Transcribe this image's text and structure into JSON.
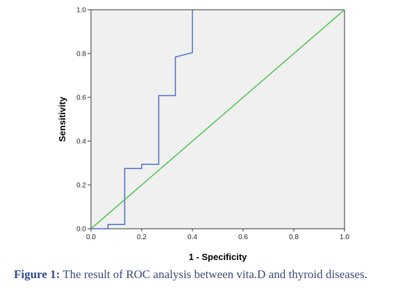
{
  "caption": {
    "label": "Figure 1:",
    "text": " The result of ROC analysis between vita.D and thyroid diseases."
  },
  "colors": {
    "plot_background": "#f0f0f0",
    "roc_curve": "#4a6cc0",
    "reference_line": "#4ec24e",
    "caption_text": "#3a4a7a"
  },
  "chart_data": {
    "type": "line",
    "title": "",
    "xlabel": "1 - Specificity",
    "ylabel": "Sensitivity",
    "xlim": [
      0,
      1
    ],
    "ylim": [
      0,
      1
    ],
    "x_ticks": [
      "0.0",
      "0.2",
      "0.4",
      "0.6",
      "0.8",
      "1.0"
    ],
    "y_ticks": [
      "0.0",
      "0.2",
      "0.4",
      "0.6",
      "0.8",
      "1.0"
    ],
    "grid": false,
    "legend": "none",
    "series": [
      {
        "color": "#4a6cc0",
        "x": [
          0.0,
          0.067,
          0.067,
          0.133,
          0.133,
          0.2,
          0.2,
          0.267,
          0.267,
          0.333,
          0.333,
          0.4,
          0.4
        ],
        "y": [
          0.0,
          0.0,
          0.02,
          0.02,
          0.275,
          0.275,
          0.294,
          0.294,
          0.608,
          0.608,
          0.784,
          0.804,
          1.0
        ]
      },
      {
        "color": "#4ec24e",
        "x": [
          0.0,
          1.0
        ],
        "y": [
          0.0,
          1.0
        ]
      }
    ]
  }
}
